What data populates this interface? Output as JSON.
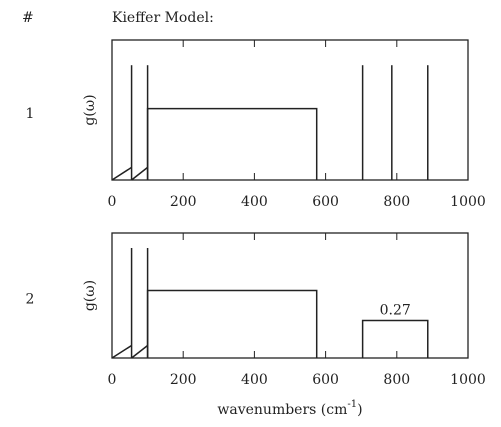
{
  "header": "#",
  "title": "Kieffer Model:",
  "chart_data": [
    {
      "type": "spectrum",
      "row_label": "1",
      "ylabel": "g(ω)",
      "xlim": [
        0,
        1000
      ],
      "ylim": [
        0,
        1
      ],
      "xticks": [
        0,
        200,
        400,
        600,
        800,
        1000
      ],
      "acoustic": {
        "x": [
          0,
          55,
          null,
          55,
          100
        ],
        "values": [
          0,
          0.09,
          null,
          0,
          0.09
        ]
      },
      "spikes": {
        "x": [
          55,
          100,
          704,
          786,
          887
        ],
        "values": [
          0.82,
          0.82,
          0.82,
          0.82,
          0.82
        ]
      },
      "bands": {
        "start": [
          100
        ],
        "end": [
          575
        ],
        "values": [
          0.51
        ],
        "labels": [
          null
        ]
      }
    },
    {
      "type": "spectrum",
      "row_label": "2",
      "ylabel": "g(ω)",
      "xlim": [
        0,
        1000
      ],
      "ylim": [
        0,
        1
      ],
      "xticks": [
        0,
        200,
        400,
        600,
        800,
        1000
      ],
      "acoustic": {
        "x": [
          0,
          55,
          null,
          55,
          100
        ],
        "values": [
          0,
          0.1,
          null,
          0,
          0.1
        ]
      },
      "spikes": {
        "x": [
          55,
          100
        ],
        "values": [
          0.88,
          0.88
        ]
      },
      "bands": {
        "start": [
          100,
          704
        ],
        "end": [
          575,
          887
        ],
        "values": [
          0.54,
          0.3
        ],
        "labels": [
          null,
          "0.27"
        ]
      },
      "xlabel": {
        "text": "wavenumbers (cm",
        "sup": "-1",
        "end": ")"
      }
    }
  ]
}
